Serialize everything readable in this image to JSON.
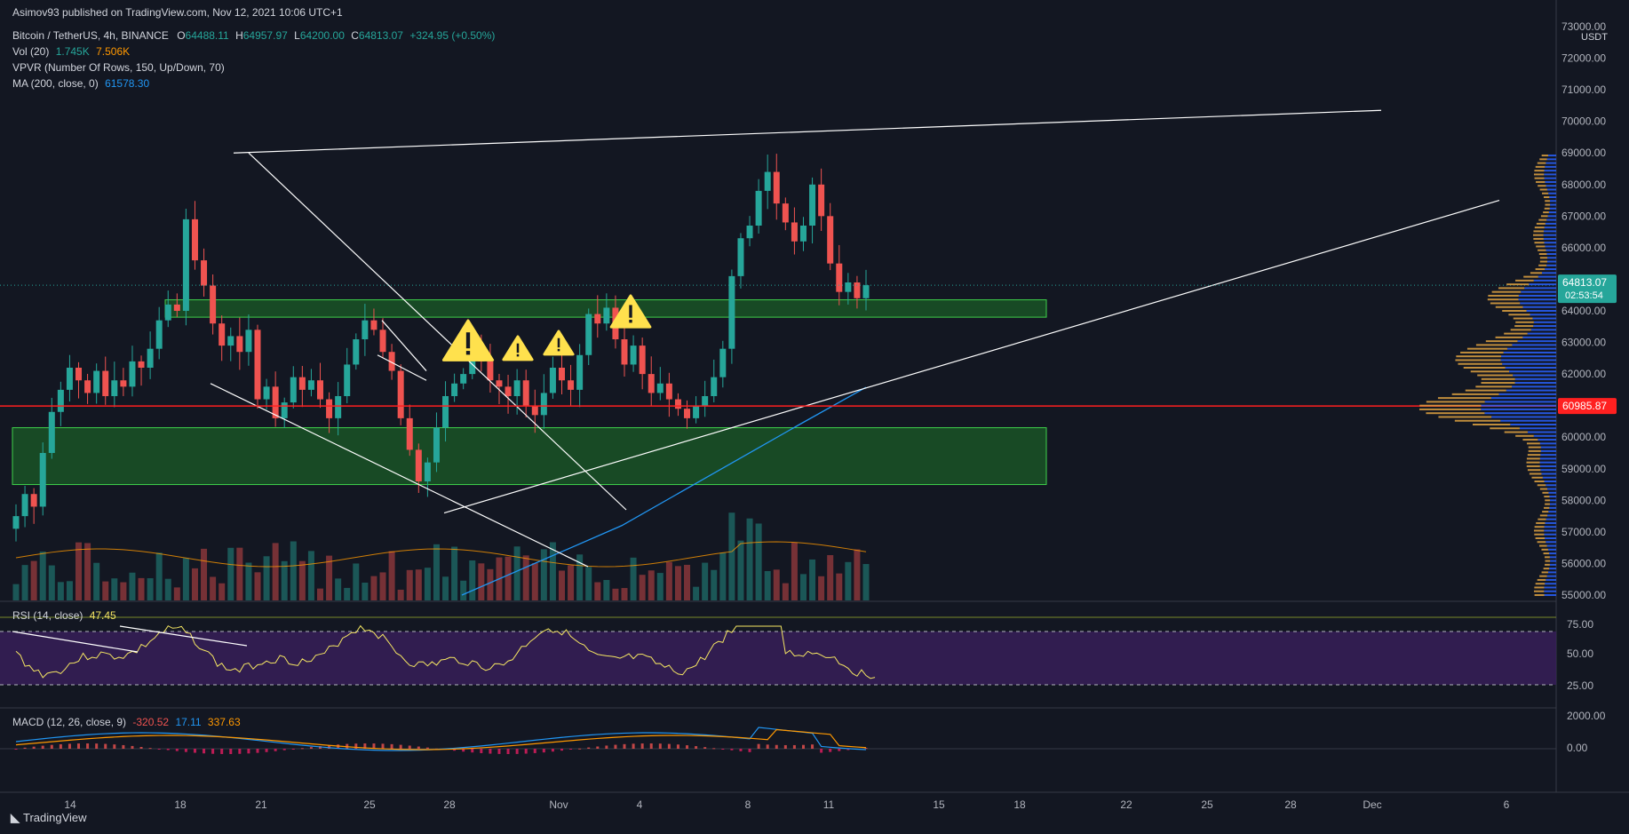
{
  "publisher": "Asimov93 published on TradingView.com, Nov 12, 2021 10:06 UTC+1",
  "symbol": {
    "name": "Bitcoin / TetherUS, 4h, BINANCE",
    "o_label": "O",
    "open": "64488.11",
    "h_label": "H",
    "high": "64957.97",
    "l_label": "L",
    "low": "64200.00",
    "c_label": "C",
    "close": "64813.07",
    "change": "+324.95 (+0.50%)"
  },
  "indicators": {
    "vol_label": "Vol (20)",
    "vol_value": "1.745K",
    "vol_ma": "7.506K",
    "vpvr_label": "VPVR (Number Of Rows, 150, Up/Down, 70)",
    "ma_label": "MA (200, close, 0)",
    "ma_value": "61578.30"
  },
  "rsi": {
    "label": "RSI (14, close)",
    "value": "47.45",
    "levels": [
      70,
      30
    ],
    "ticks": [
      "75.00",
      "50.00",
      "25.00"
    ]
  },
  "macd": {
    "label": "MACD (12, 26, close, 9)",
    "hist": "-320.52",
    "macd": "17.11",
    "signal": "337.63",
    "ticks": [
      "2000.00",
      "0.00"
    ]
  },
  "axis": {
    "currency": "USDT",
    "price_ticks": [
      "73000.00",
      "72000.00",
      "71000.00",
      "70000.00",
      "69000.00",
      "68000.00",
      "67000.00",
      "66000.00",
      "65000.00",
      "64000.00",
      "63000.00",
      "62000.00",
      "61000.00",
      "60000.00",
      "59000.00",
      "58000.00",
      "57000.00",
      "56000.00",
      "55000.00"
    ],
    "last_price": "64813.07",
    "countdown": "02:53:54",
    "red_level": "60985.87",
    "date_ticks": [
      "14",
      "18",
      "21",
      "25",
      "28",
      "Nov",
      "4",
      "8",
      "11",
      "15",
      "18",
      "22",
      "25",
      "28",
      "Dec",
      "6"
    ]
  },
  "colors": {
    "up": "#26a69a",
    "down": "#ef5350",
    "zone": "#1e8a2a",
    "rsi_bg": "#3a1f5c",
    "ma": "#2196f3",
    "vpvr_up": "#2962ff",
    "vpvr_down": "#e0a341",
    "red_line": "#ff2020"
  },
  "brand": "TradingView",
  "chart_data": {
    "type": "candlestick",
    "timeframe": "4h",
    "ylim": [
      55000,
      73000
    ],
    "x_range": [
      "Oct 11",
      "Dec 7"
    ],
    "series_close_approx": [
      57500,
      58200,
      57800,
      59500,
      60800,
      61500,
      62200,
      61800,
      61400,
      62100,
      61300,
      61800,
      61600,
      62400,
      62200,
      62800,
      63700,
      64200,
      64000,
      66900,
      65600,
      64800,
      63600,
      62900,
      63200,
      62700,
      63400,
      61200,
      61600,
      60600,
      61100,
      61900,
      61500,
      61800,
      61200,
      60600,
      61300,
      62300,
      63100,
      63700,
      63400,
      62700,
      62100,
      60600,
      59600,
      58600,
      59200,
      60300,
      61300,
      61700,
      62000,
      62900,
      62400,
      61800,
      61600,
      61300,
      61800,
      61000,
      60700,
      61400,
      62200,
      61800,
      61500,
      62600,
      63900,
      63600,
      64100,
      63100,
      62300,
      62900,
      62000,
      61400,
      61700,
      61200,
      60900,
      60600,
      61000,
      61300,
      61900,
      62800,
      65100,
      66300,
      66700,
      67800,
      68400,
      67400,
      66800,
      66200,
      66700,
      68000,
      67000,
      65500,
      64600,
      64900,
      64400,
      64813
    ],
    "zones": [
      {
        "from": 63800,
        "to": 64350
      },
      {
        "from": 58500,
        "to": 60300
      }
    ],
    "levels": [
      60985.87
    ],
    "ma200_end": 61578.3,
    "rsi_last": 47.45,
    "macd_last": {
      "hist": -320.52,
      "macd": 17.11,
      "signal": 337.63
    }
  }
}
